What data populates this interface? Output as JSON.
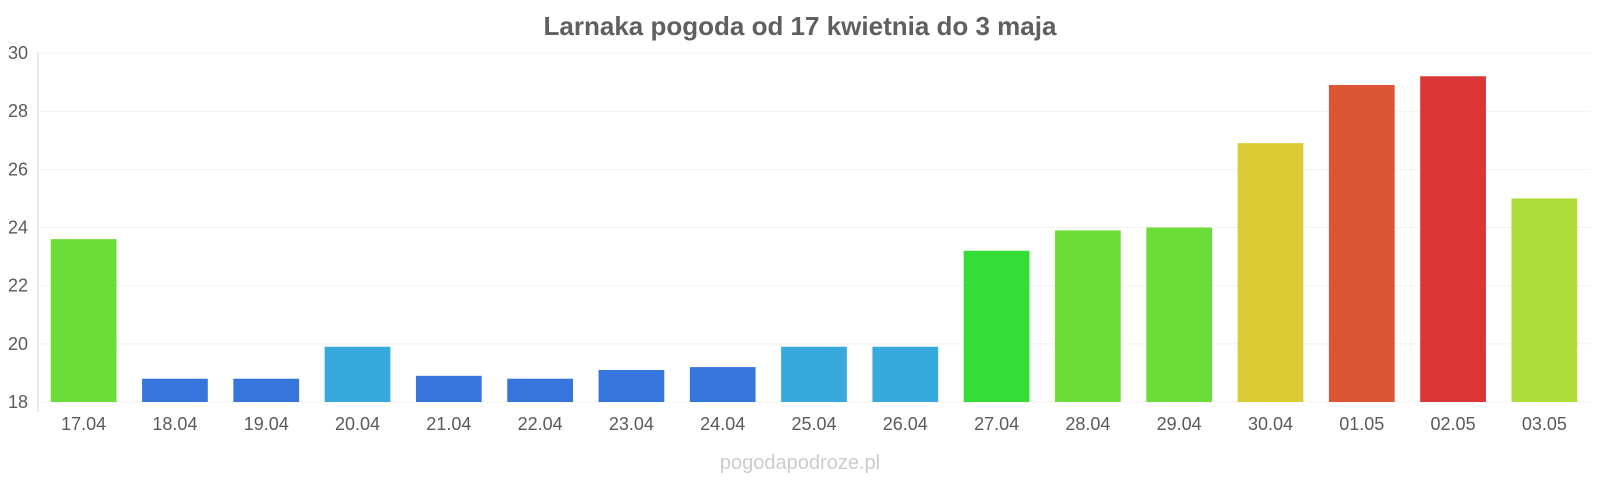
{
  "chart_data": {
    "type": "bar",
    "title": "Larnaka pogoda od 17 kwietnia do 3 maja",
    "xlabel": "",
    "ylabel": "",
    "ylim": [
      18,
      30
    ],
    "yticks": [
      18,
      20,
      22,
      24,
      26,
      28,
      30
    ],
    "grid": true,
    "categories": [
      "17.04",
      "18.04",
      "19.04",
      "20.04",
      "21.04",
      "22.04",
      "23.04",
      "24.04",
      "25.04",
      "26.04",
      "27.04",
      "28.04",
      "29.04",
      "30.04",
      "01.05",
      "02.05",
      "03.05"
    ],
    "values": [
      23.6,
      18.8,
      18.8,
      19.9,
      18.9,
      18.8,
      19.1,
      19.2,
      19.9,
      19.9,
      23.2,
      23.9,
      24.0,
      26.9,
      28.9,
      29.2,
      25.0
    ],
    "colors": [
      "#6add38",
      "#3675dc",
      "#3675dc",
      "#37a9dc",
      "#3675dc",
      "#3675dc",
      "#3675dc",
      "#3675dc",
      "#37a9dc",
      "#37a9dc",
      "#35de37",
      "#6add38",
      "#6add38",
      "#dccb32",
      "#dc5532",
      "#dc3535",
      "#addd38"
    ]
  },
  "watermark": "pogodapodroze.pl"
}
